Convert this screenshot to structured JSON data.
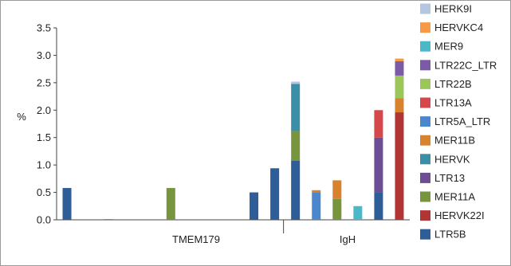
{
  "chart_data": {
    "type": "bar",
    "stacked": true,
    "ylabel": "%",
    "xlabel": "",
    "ylim": [
      0,
      3.5
    ],
    "yticks": [
      "0.0",
      "0.5",
      "1.0",
      "1.5",
      "2.0",
      "2.5",
      "3.0",
      "3.5"
    ],
    "group_labels": [
      "TMEM179",
      "IgH"
    ],
    "legend_position": "right",
    "series": [
      {
        "name": "HERK9I",
        "color": "#b4c6e0"
      },
      {
        "name": "HERVKC4",
        "color": "#f79a48"
      },
      {
        "name": "MER9",
        "color": "#4bb8c8"
      },
      {
        "name": "LTR22C_LTR",
        "color": "#7b5aa6"
      },
      {
        "name": "LTR22B",
        "color": "#9cc65a"
      },
      {
        "name": "LTR13A",
        "color": "#d5474a"
      },
      {
        "name": "LTR5A_LTR",
        "color": "#4a87cc"
      },
      {
        "name": "MER11B",
        "color": "#d8822e"
      },
      {
        "name": "HERVK",
        "color": "#3a8fa6"
      },
      {
        "name": "LTR13",
        "color": "#6b4e94"
      },
      {
        "name": "MER11A",
        "color": "#76953c"
      },
      {
        "name": "HERVK22I",
        "color": "#b23535"
      },
      {
        "name": "LTR5B",
        "color": "#2f5d98"
      }
    ],
    "bars": [
      {
        "segments": [
          {
            "series": "LTR5B",
            "value": 0.58
          }
        ]
      },
      {
        "segments": []
      },
      {
        "segments": [
          {
            "series": "LTR5B",
            "value": 0.01
          }
        ]
      },
      {
        "segments": []
      },
      {
        "segments": []
      },
      {
        "segments": [
          {
            "series": "MER11A",
            "value": 0.58
          }
        ]
      },
      {
        "segments": []
      },
      {
        "segments": []
      },
      {
        "segments": []
      },
      {
        "segments": [
          {
            "series": "LTR5B",
            "value": 0.5
          }
        ]
      },
      {
        "segments": [
          {
            "series": "LTR5B",
            "value": 0.94
          }
        ]
      },
      {
        "segments": [
          {
            "series": "LTR5B",
            "value": 1.08
          },
          {
            "series": "MER11A",
            "value": 0.54
          },
          {
            "series": "HERVK",
            "value": 0.86
          },
          {
            "series": "HERK9I",
            "value": 0.04
          }
        ]
      },
      {
        "segments": [
          {
            "series": "LTR5A_LTR",
            "value": 0.5
          },
          {
            "series": "MER11B",
            "value": 0.04
          }
        ]
      },
      {
        "segments": [
          {
            "series": "MER11A",
            "value": 0.38
          },
          {
            "series": "MER11B",
            "value": 0.34
          }
        ]
      },
      {
        "segments": [
          {
            "series": "MER9",
            "value": 0.25
          }
        ]
      },
      {
        "segments": [
          {
            "series": "LTR5B",
            "value": 0.5
          },
          {
            "series": "LTR13",
            "value": 1.0
          },
          {
            "series": "LTR13A",
            "value": 0.5
          }
        ]
      },
      {
        "segments": [
          {
            "series": "HERVK22I",
            "value": 1.96
          },
          {
            "series": "MER11B",
            "value": 0.26
          },
          {
            "series": "LTR22B",
            "value": 0.41
          },
          {
            "series": "LTR22C_LTR",
            "value": 0.26
          },
          {
            "series": "HERVKC4",
            "value": 0.05
          }
        ]
      }
    ]
  }
}
